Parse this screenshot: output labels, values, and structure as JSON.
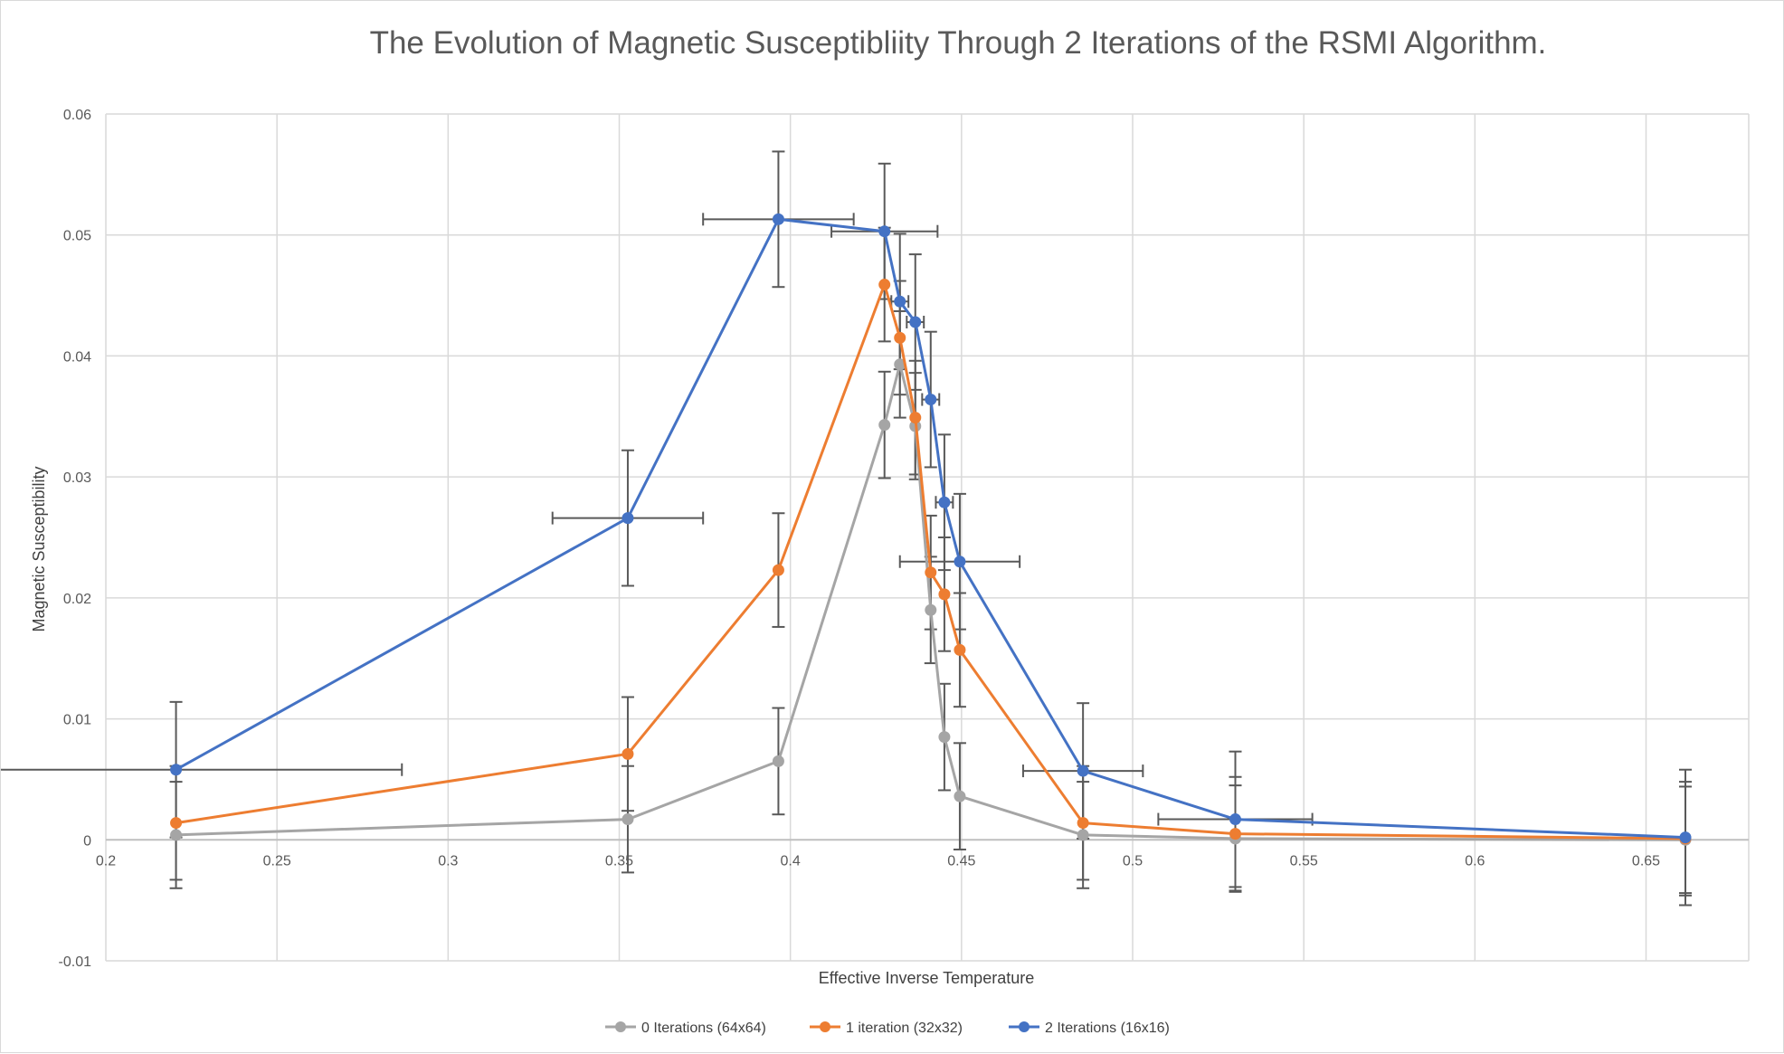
{
  "chart_data": {
    "type": "line",
    "title": "The Evolution of Magnetic Susceptibliity Through 2 Iterations of the RSMI Algorithm.",
    "xlabel": "Effective Inverse Temperature",
    "ylabel": "Magnetic Susceptibility",
    "xlim": [
      0.2,
      0.68
    ],
    "ylim": [
      -0.01,
      0.06
    ],
    "x_ticks": [
      "0.2",
      "0.25",
      "0.3",
      "0.35",
      "0.4",
      "0.45",
      "0.5",
      "0.55",
      "0.6",
      "0.65"
    ],
    "x_tick_values": [
      0.2,
      0.25,
      0.3,
      0.35,
      0.4,
      0.45,
      0.5,
      0.55,
      0.6,
      0.65
    ],
    "y_ticks": [
      "-0.01",
      "0",
      "0.01",
      "0.02",
      "0.03",
      "0.04",
      "0.05",
      "0.06"
    ],
    "y_tick_values": [
      -0.01,
      0,
      0.01,
      0.02,
      0.03,
      0.04,
      0.05,
      0.06
    ],
    "grid": true,
    "legend_position": "bottom",
    "series": [
      {
        "name": "0 Iterations (64x64)",
        "color": "#a5a5a5",
        "points": [
          {
            "x": 0.2205,
            "y": 0.0004,
            "yerr": 0.0044
          },
          {
            "x": 0.3525,
            "y": 0.0017,
            "yerr": 0.0044
          },
          {
            "x": 0.3965,
            "y": 0.0065,
            "yerr": 0.0044
          },
          {
            "x": 0.4275,
            "y": 0.0343,
            "yerr": 0.0044
          },
          {
            "x": 0.432,
            "y": 0.0393,
            "yerr": 0.0044
          },
          {
            "x": 0.4365,
            "y": 0.0342,
            "yerr": 0.0044
          },
          {
            "x": 0.441,
            "y": 0.019,
            "yerr": 0.0044
          },
          {
            "x": 0.445,
            "y": 0.0085,
            "yerr": 0.0044
          },
          {
            "x": 0.4495,
            "y": 0.0036,
            "yerr": 0.0044
          },
          {
            "x": 0.4855,
            "y": 0.0004,
            "yerr": 0.0044
          },
          {
            "x": 0.53,
            "y": 0.0001,
            "yerr": 0.0044
          },
          {
            "x": 0.6615,
            "y": 0.0,
            "yerr": 0.0044
          }
        ]
      },
      {
        "name": "1 iteration (32x32)",
        "color": "#ed7d31",
        "points": [
          {
            "x": 0.2205,
            "y": 0.0014,
            "yerr": 0.0047
          },
          {
            "x": 0.3525,
            "y": 0.0071,
            "yerr": 0.0047
          },
          {
            "x": 0.3965,
            "y": 0.0223,
            "yerr": 0.0047
          },
          {
            "x": 0.4275,
            "y": 0.0459,
            "yerr": 0.0047
          },
          {
            "x": 0.432,
            "y": 0.0415,
            "yerr": 0.0047
          },
          {
            "x": 0.4365,
            "y": 0.0349,
            "yerr": 0.0047
          },
          {
            "x": 0.441,
            "y": 0.0221,
            "yerr": 0.0047
          },
          {
            "x": 0.445,
            "y": 0.0203,
            "yerr": 0.0047
          },
          {
            "x": 0.4495,
            "y": 0.0157,
            "yerr": 0.0047
          },
          {
            "x": 0.4855,
            "y": 0.0014,
            "yerr": 0.0047
          },
          {
            "x": 0.53,
            "y": 0.0005,
            "yerr": 0.0047
          },
          {
            "x": 0.6615,
            "y": 0.0001,
            "yerr": 0.0047
          }
        ]
      },
      {
        "name": "2 Iterations (16x16)",
        "color": "#4472c4",
        "points": [
          {
            "x": 0.2205,
            "y": 0.0058,
            "yerr": 0.0056,
            "xerr": 0.066
          },
          {
            "x": 0.3525,
            "y": 0.0266,
            "yerr": 0.0056,
            "xerr": 0.022
          },
          {
            "x": 0.3965,
            "y": 0.0513,
            "yerr": 0.0056,
            "xerr": 0.022
          },
          {
            "x": 0.4275,
            "y": 0.0503,
            "yerr": 0.0056,
            "xerr": 0.0155
          },
          {
            "x": 0.432,
            "y": 0.0445,
            "yerr": 0.0056,
            "xerr": 0.0025
          },
          {
            "x": 0.4365,
            "y": 0.0428,
            "yerr": 0.0056,
            "xerr": 0.0025
          },
          {
            "x": 0.441,
            "y": 0.0364,
            "yerr": 0.0056,
            "xerr": 0.0025
          },
          {
            "x": 0.445,
            "y": 0.0279,
            "yerr": 0.0056,
            "xerr": 0.0025
          },
          {
            "x": 0.4495,
            "y": 0.023,
            "yerr": 0.0056,
            "xerr": 0.0175
          },
          {
            "x": 0.4855,
            "y": 0.0057,
            "yerr": 0.0056,
            "xerr": 0.0175
          },
          {
            "x": 0.53,
            "y": 0.0017,
            "yerr": 0.0056,
            "xerr": 0.0225
          },
          {
            "x": 0.6615,
            "y": 0.0002,
            "yerr": 0.0056,
            "xerr": 0.0
          }
        ]
      }
    ]
  }
}
